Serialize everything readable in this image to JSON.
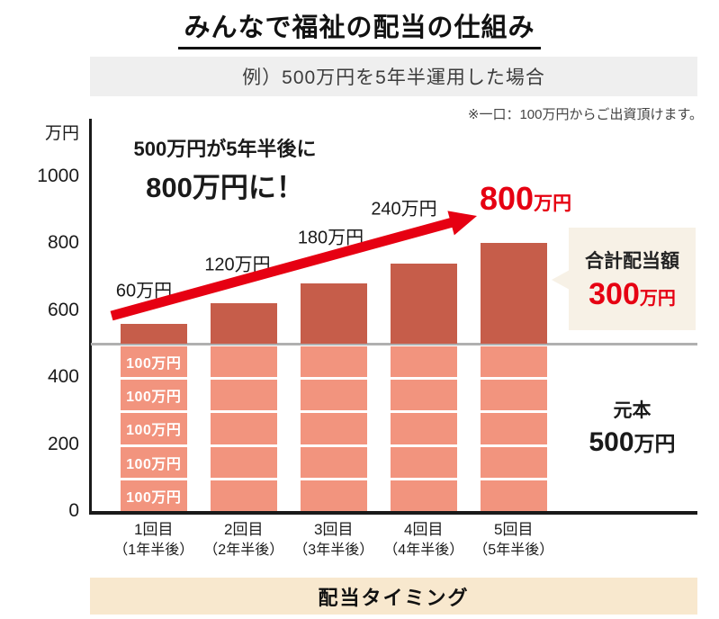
{
  "title": "みんなで福祉の配当の仕組み",
  "subtitle": "例）500万円を5年半運用した場合",
  "note": "※一口：100万円からご出資頂けます。",
  "annotation": {
    "line1": "500万円が5年半後に",
    "line2": "800万円に！"
  },
  "result_label": {
    "value": "800",
    "unit": "万円"
  },
  "callout": {
    "title": "合計配当額",
    "value": "300",
    "unit": "万円"
  },
  "principal_box": {
    "label": "元本",
    "value": "500",
    "unit": "万円"
  },
  "footer_banner": "配当タイミング",
  "colors": {
    "accent_red": "#e60012",
    "bar_dark": "#c65d4a",
    "bar_light": "#f2947e",
    "subtitle_bg": "#efefef",
    "footer_bg": "#f8e8ce",
    "callout_bg": "#f7f1e6",
    "line_gray": "#b0b0b0",
    "axis_black": "#1a1a1a"
  },
  "chart_data": {
    "type": "bar",
    "stacked": true,
    "title": "みんなで福祉の配当の仕組み",
    "subtitle": "例）500万円を5年半運用した場合",
    "unit_label": "万円",
    "ylim": [
      0,
      1000
    ],
    "yticks": [
      1000,
      800,
      600,
      400,
      200,
      0
    ],
    "baseline_value": 500,
    "grid": false,
    "legend": "none",
    "categories": [
      {
        "line1": "1回目",
        "line2": "（1年半後）"
      },
      {
        "line1": "2回目",
        "line2": "（2年半後）"
      },
      {
        "line1": "3回目",
        "line2": "（3年半後）"
      },
      {
        "line1": "4回目",
        "line2": "（4年半後）"
      },
      {
        "line1": "5回目",
        "line2": "（5年半後）"
      }
    ],
    "series": [
      {
        "name": "元本",
        "values": [
          500,
          500,
          500,
          500,
          500
        ]
      },
      {
        "name": "配当累計",
        "values": [
          60,
          120,
          180,
          240,
          300
        ]
      }
    ],
    "totals": [
      560,
      620,
      680,
      740,
      800
    ],
    "principal_segments_per_bar": 5,
    "principal_segment_value": 100,
    "principal_segment_label": "100万円",
    "dividend_labels": [
      "60万円",
      "120万円",
      "180万円",
      "240万円"
    ],
    "final_total_label": "800万円"
  }
}
